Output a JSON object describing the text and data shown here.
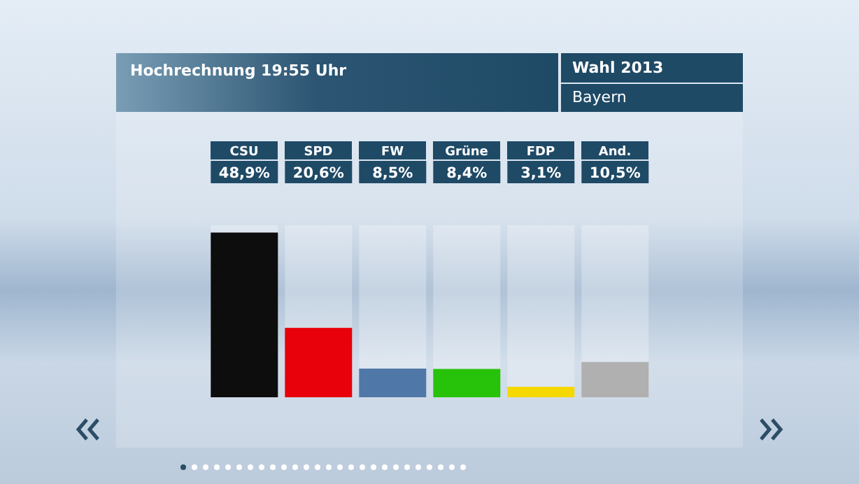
{
  "chart_data": {
    "type": "bar",
    "title": "Hochrechnung 19:55 Uhr",
    "subtitle": "Wahl 2013",
    "annotations": [
      "Bayern"
    ],
    "categories": [
      "CSU",
      "SPD",
      "FW",
      "Grüne",
      "FDP",
      "And."
    ],
    "values": [
      48.9,
      20.6,
      8.5,
      8.4,
      3.1,
      10.5
    ],
    "colors": [
      "#0d0d0d",
      "#e8000b",
      "#4f78a8",
      "#27c20a",
      "#f5d800",
      "#b0b0b0"
    ],
    "value_labels": [
      "48,9%",
      "20,6%",
      "8,5%",
      "8,4%",
      "3,1%",
      "10,5%"
    ]
  }
}
